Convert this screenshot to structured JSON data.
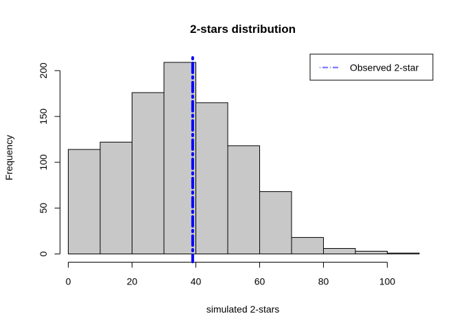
{
  "chart_data": {
    "type": "bar",
    "title": "2-stars distribution",
    "xlabel": "simulated 2-stars",
    "ylabel": "Frequency",
    "bins": [
      {
        "from": 0,
        "to": 10,
        "count": 114
      },
      {
        "from": 10,
        "to": 20,
        "count": 122
      },
      {
        "from": 20,
        "to": 30,
        "count": 176
      },
      {
        "from": 30,
        "to": 40,
        "count": 209
      },
      {
        "from": 40,
        "to": 50,
        "count": 165
      },
      {
        "from": 50,
        "to": 60,
        "count": 118
      },
      {
        "from": 60,
        "to": 70,
        "count": 68
      },
      {
        "from": 70,
        "to": 80,
        "count": 18
      },
      {
        "from": 80,
        "to": 90,
        "count": 6
      },
      {
        "from": 90,
        "to": 100,
        "count": 3
      },
      {
        "from": 100,
        "to": 110,
        "count": 1
      }
    ],
    "xlim": [
      0,
      110
    ],
    "ylim": [
      0,
      209
    ],
    "x_ticks": [
      0,
      20,
      40,
      60,
      80,
      100
    ],
    "y_ticks": [
      0,
      50,
      100,
      150,
      200
    ],
    "bar_color": "#c8c8c8",
    "observed_line": {
      "x": 39,
      "color": "#0000ff",
      "style": "dot-dash"
    },
    "legend": {
      "position": "top-right",
      "entries": [
        {
          "label": "Observed 2-star",
          "color": "#0000ff",
          "style": "dot-dash"
        }
      ]
    },
    "grid": false
  }
}
